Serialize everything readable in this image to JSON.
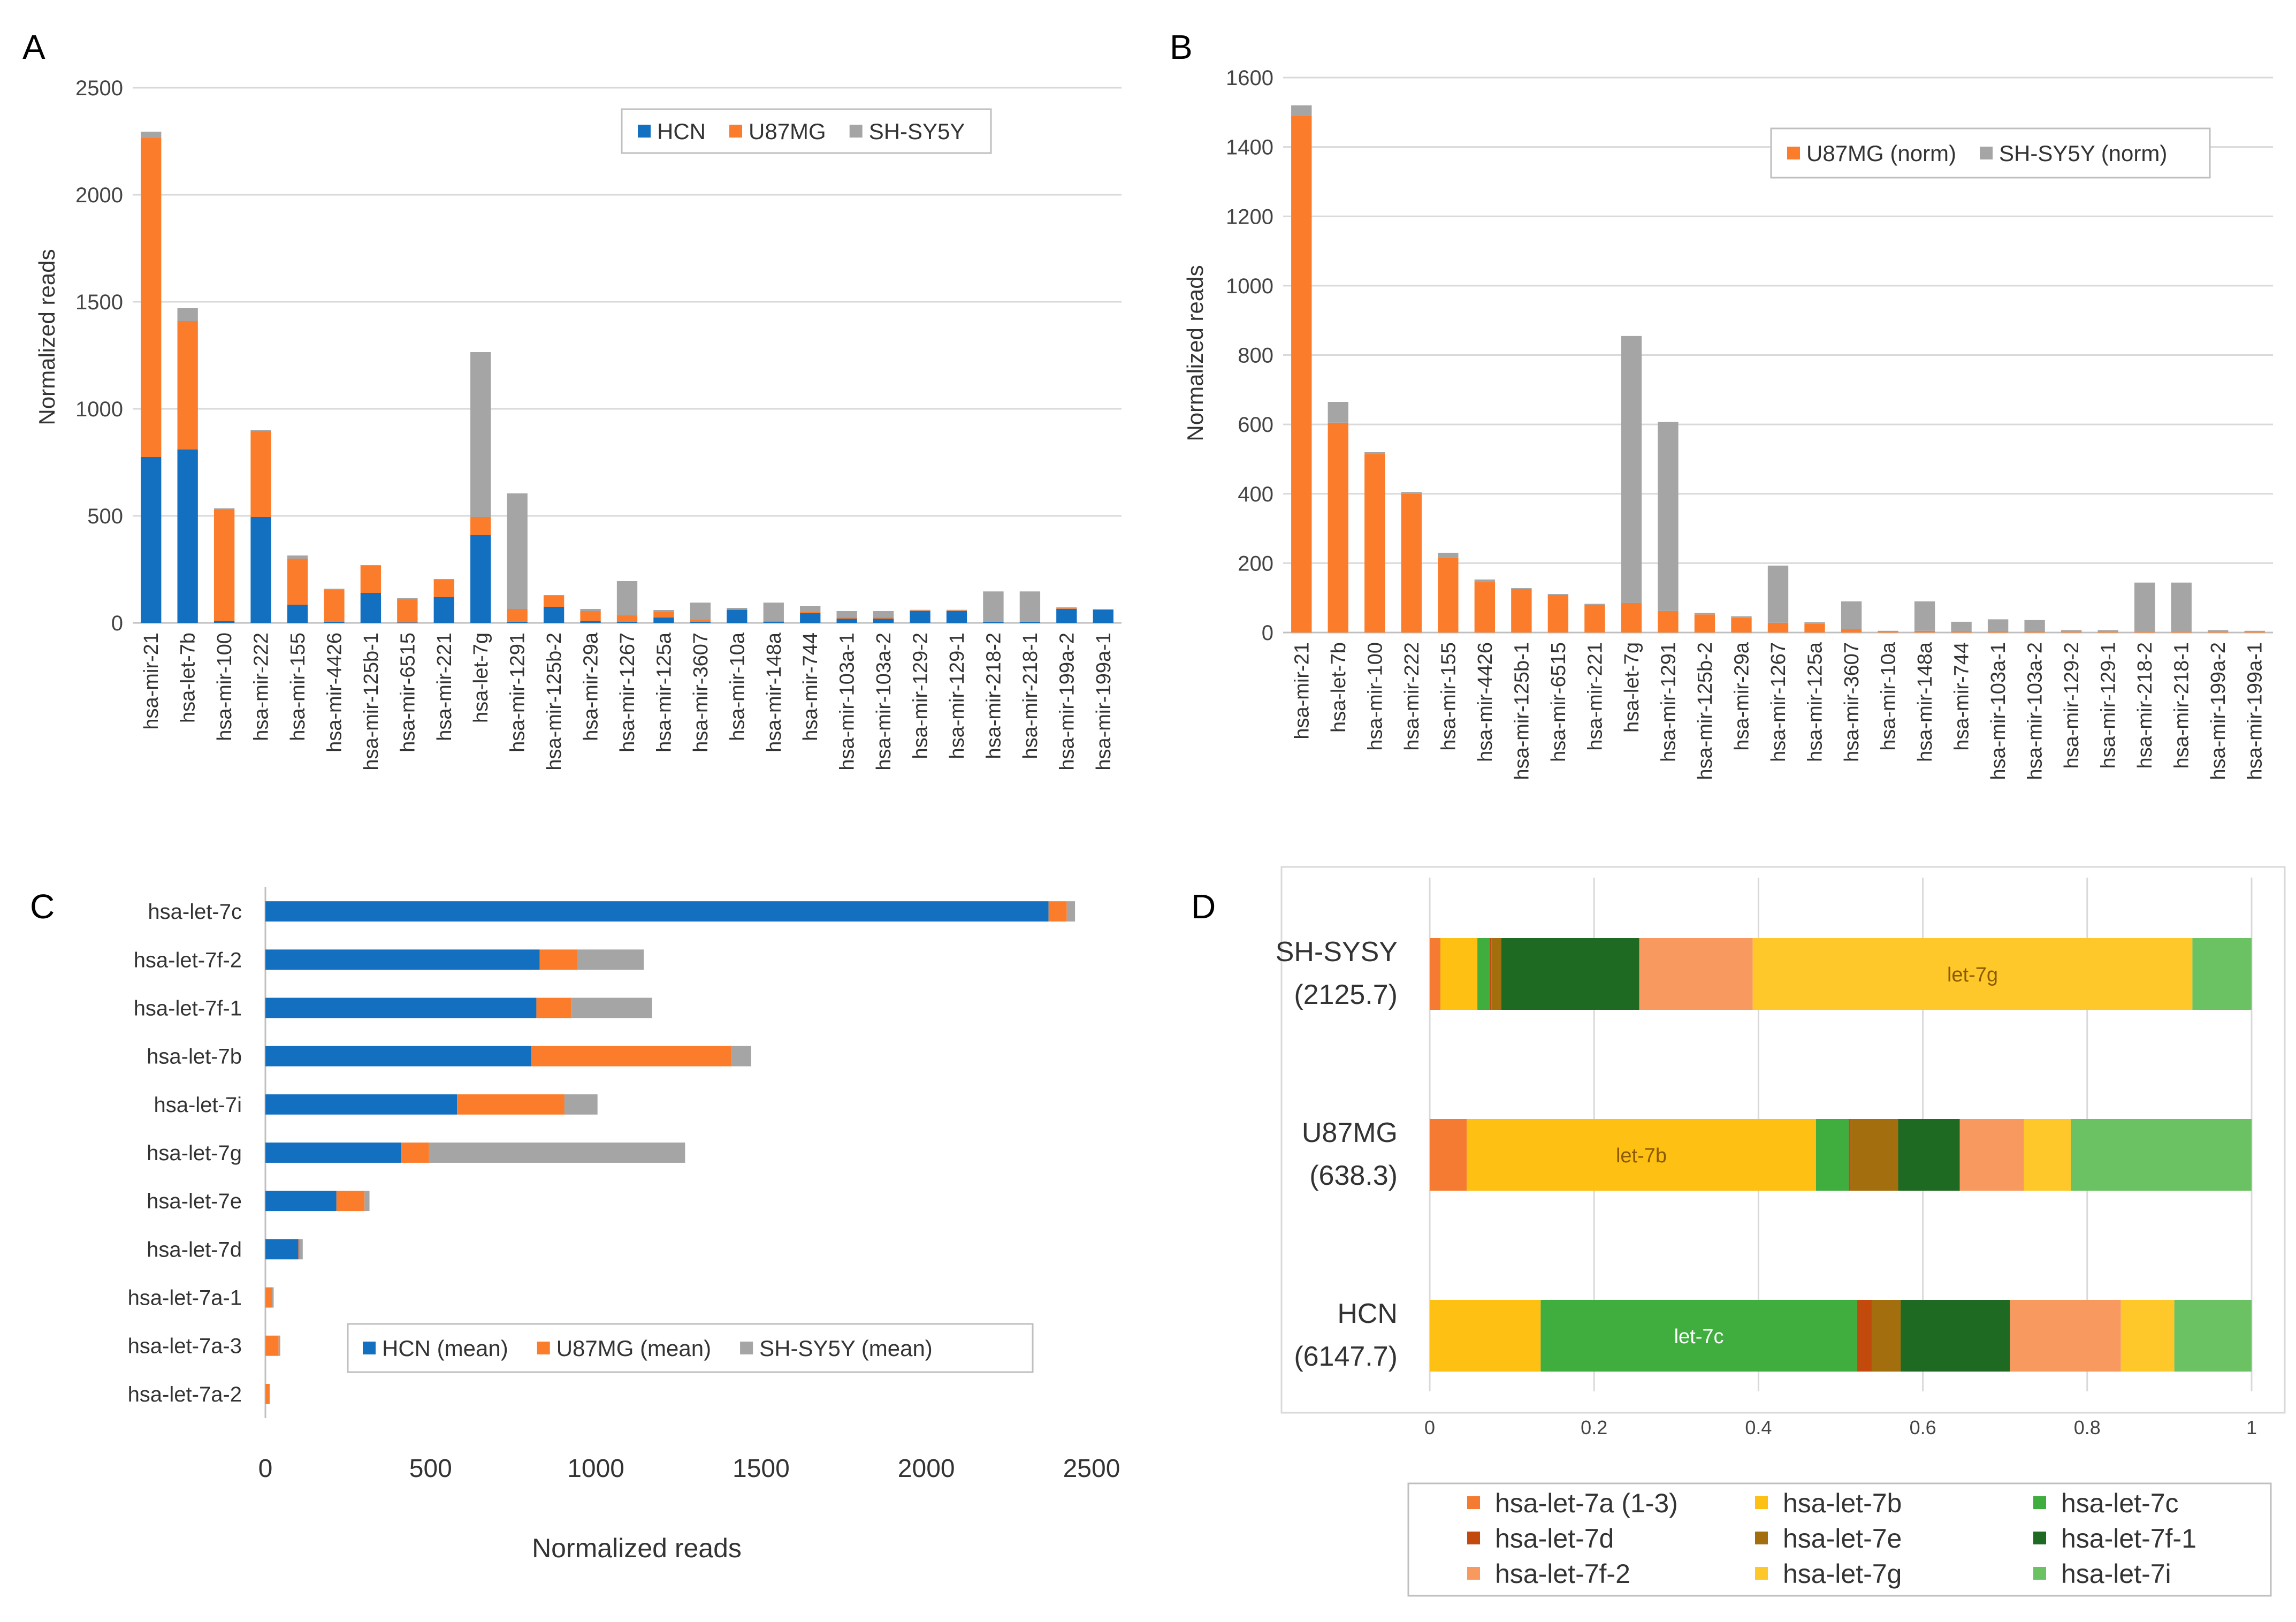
{
  "panels": {
    "A": {
      "label": "A"
    },
    "B": {
      "label": "B"
    },
    "C": {
      "label": "C"
    },
    "D": {
      "label": "D"
    }
  },
  "colors": {
    "HCN": "#1370c1",
    "U87MG": "#fb7d2b",
    "SHSY5Y": "#a5a5a5",
    "let7a": "#f67b32",
    "let7b": "#fec013",
    "let7c": "#40ad3f",
    "let7d": "#c34a0d",
    "let7e": "#a36e0d",
    "let7f1": "#1f6a23",
    "let7f2": "#f89a5f",
    "let7g": "#fec82a",
    "let7i": "#6bc262"
  },
  "chart_data": [
    {
      "id": "A",
      "type": "bar",
      "stacked": true,
      "title": "",
      "xlabel": "",
      "ylabel": "Normalized reads",
      "ylim": [
        0,
        2500
      ],
      "yticks": [
        0,
        500,
        1000,
        1500,
        2000,
        2500
      ],
      "legend_position": "top-right",
      "categories": [
        "hsa-mir-21",
        "hsa-let-7b",
        "hsa-mir-100",
        "hsa-mir-222",
        "hsa-mir-155",
        "hsa-mir-4426",
        "hsa-mir-125b-1",
        "hsa-mir-6515",
        "hsa-mir-221",
        "hsa-let-7g",
        "hsa-mir-1291",
        "hsa-mir-125b-2",
        "hsa-mir-29a",
        "hsa-mir-1267",
        "hsa-mir-125a",
        "hsa-mir-3607",
        "hsa-mir-10a",
        "hsa-mir-148a",
        "hsa-mir-744",
        "hsa-mir-103a-1",
        "hsa-mir-103a-2",
        "hsa-mir-129-2",
        "hsa-mir-129-1",
        "hsa-mir-218-2",
        "hsa-mir-218-1",
        "hsa-mir-199a-2",
        "hsa-mir-199a-1"
      ],
      "series": [
        {
          "name": "HCN",
          "color_key": "HCN",
          "values": [
            775,
            810,
            10,
            495,
            85,
            5,
            140,
            2,
            120,
            410,
            5,
            75,
            10,
            5,
            25,
            5,
            60,
            5,
            45,
            20,
            20,
            55,
            55,
            5,
            5,
            65,
            60
          ]
        },
        {
          "name": "U87MG",
          "color_key": "U87MG",
          "values": [
            1490,
            600,
            520,
            400,
            215,
            150,
            125,
            110,
            80,
            85,
            60,
            50,
            45,
            30,
            25,
            10,
            5,
            5,
            5,
            5,
            5,
            3,
            3,
            2,
            2,
            3,
            2
          ]
        },
        {
          "name": "SH-SY5Y",
          "color_key": "SHSY5Y",
          "values": [
            30,
            60,
            5,
            5,
            15,
            5,
            5,
            5,
            5,
            770,
            540,
            5,
            10,
            160,
            10,
            80,
            5,
            85,
            30,
            30,
            30,
            3,
            3,
            140,
            140,
            5,
            3
          ]
        }
      ]
    },
    {
      "id": "B",
      "type": "bar",
      "stacked": true,
      "title": "",
      "xlabel": "",
      "ylabel": "Normalized reads",
      "ylim": [
        0,
        1600
      ],
      "yticks": [
        0,
        200,
        400,
        600,
        800,
        1000,
        1200,
        1400,
        1600
      ],
      "legend_position": "top-right",
      "categories": [
        "hsa-mir-21",
        "hsa-let-7b",
        "hsa-mir-100",
        "hsa-mir-222",
        "hsa-mir-155",
        "hsa-mir-4426",
        "hsa-mir-125b-1",
        "hsa-mir-6515",
        "hsa-mir-221",
        "hsa-let-7g",
        "hsa-mir-1291",
        "hsa-mir-125b-2",
        "hsa-mir-29a",
        "hsa-mir-1267",
        "hsa-mir-125a",
        "hsa-mir-3607",
        "hsa-mir-10a",
        "hsa-mir-148a",
        "hsa-mir-744",
        "hsa-mir-103a-1",
        "hsa-mir-103a-2",
        "hsa-mir-129-2",
        "hsa-mir-129-1",
        "hsa-mir-218-2",
        "hsa-mir-218-1",
        "hsa-mir-199a-2",
        "hsa-mir-199a-1"
      ],
      "series": [
        {
          "name": "U87MG (norm)",
          "color_key": "U87MG",
          "values": [
            1490,
            605,
            515,
            400,
            215,
            145,
            125,
            108,
            80,
            85,
            62,
            52,
            42,
            28,
            25,
            10,
            3,
            5,
            3,
            3,
            3,
            2,
            2,
            2,
            2,
            2,
            2
          ]
        },
        {
          "name": "SH-SY5Y (norm)",
          "color_key": "SHSY5Y",
          "values": [
            30,
            60,
            5,
            5,
            15,
            8,
            3,
            3,
            3,
            770,
            545,
            5,
            5,
            165,
            5,
            80,
            2,
            85,
            28,
            35,
            33,
            5,
            5,
            142,
            142,
            5,
            3
          ]
        }
      ]
    },
    {
      "id": "C",
      "type": "bar",
      "orientation": "horizontal",
      "stacked": true,
      "title": "",
      "xlabel": "Normalized reads",
      "ylabel": "",
      "xlim": [
        0,
        2500
      ],
      "xticks": [
        0,
        500,
        1000,
        1500,
        2000,
        2500
      ],
      "legend_position": "bottom-right",
      "categories": [
        "hsa-let-7c",
        "hsa-let-7f-2",
        "hsa-let-7f-1",
        "hsa-let-7b",
        "hsa-let-7i",
        "hsa-let-7g",
        "hsa-let-7e",
        "hsa-let-7d",
        "hsa-let-7a-1",
        "hsa-let-7a-3",
        "hsa-let-7a-2"
      ],
      "series": [
        {
          "name": "HCN (mean)",
          "color_key": "HCN",
          "values": [
            2370,
            830,
            820,
            805,
            580,
            410,
            215,
            100,
            0,
            0,
            0
          ]
        },
        {
          "name": "U87MG (mean)",
          "color_key": "U87MG",
          "values": [
            55,
            115,
            105,
            605,
            325,
            85,
            85,
            5,
            20,
            40,
            12
          ]
        },
        {
          "name": "SH-SY5Y (mean)",
          "color_key": "SHSY5Y",
          "values": [
            25,
            200,
            245,
            60,
            100,
            775,
            15,
            8,
            5,
            5,
            2
          ]
        }
      ]
    },
    {
      "id": "D",
      "type": "bar",
      "orientation": "horizontal",
      "stacked": true,
      "normalized": true,
      "title": "",
      "xlabel": "",
      "ylabel": "",
      "xlim": [
        0,
        1
      ],
      "xticks": [
        0,
        0.2,
        0.4,
        0.6,
        0.8,
        1
      ],
      "xtick_labels": [
        "0",
        "0.2",
        "0.4",
        "0.6",
        "0.8",
        "1"
      ],
      "legend_position": "bottom",
      "rows": [
        {
          "name": "SH-SYSY",
          "total": "(2125.7)",
          "bar_label": "let-7g",
          "label_member": "hsa-let-7g",
          "label_color": "#8a5a00"
        },
        {
          "name": "U87MG",
          "total": "(638.3)",
          "bar_label": "let-7b",
          "label_member": "hsa-let-7b",
          "label_color": "#8a5a00"
        },
        {
          "name": "HCN",
          "total": "(6147.7)",
          "bar_label": "let-7c",
          "label_member": "hsa-let-7c",
          "label_color": "#ffffff"
        }
      ],
      "series": [
        {
          "name": "hsa-let-7a (1-3)",
          "color_key": "let7a",
          "values": [
            0.013,
            0.045,
            0.0
          ]
        },
        {
          "name": "hsa-let-7b",
          "color_key": "let7b",
          "values": [
            0.045,
            0.425,
            0.135
          ]
        },
        {
          "name": "hsa-let-7c",
          "color_key": "let7c",
          "values": [
            0.015,
            0.04,
            0.385
          ]
        },
        {
          "name": "hsa-let-7d",
          "color_key": "let7d",
          "values": [
            0.002,
            0.002,
            0.018
          ]
        },
        {
          "name": "hsa-let-7e",
          "color_key": "let7e",
          "values": [
            0.012,
            0.058,
            0.035
          ]
        },
        {
          "name": "hsa-let-7f-1",
          "color_key": "let7f1",
          "values": [
            0.168,
            0.075,
            0.133
          ]
        },
        {
          "name": "hsa-let-7f-2",
          "color_key": "let7f2",
          "values": [
            0.138,
            0.078,
            0.135
          ]
        },
        {
          "name": "hsa-let-7g",
          "color_key": "let7g",
          "values": [
            0.535,
            0.057,
            0.065
          ]
        },
        {
          "name": "hsa-let-7i",
          "color_key": "let7i",
          "values": [
            0.072,
            0.22,
            0.094
          ]
        }
      ]
    }
  ]
}
